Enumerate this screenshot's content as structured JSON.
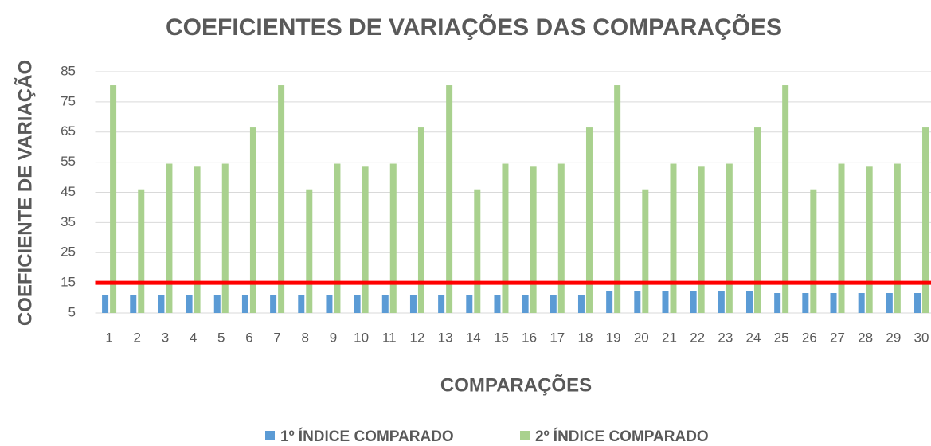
{
  "chart_data": {
    "type": "bar",
    "title": "COEFICIENTES DE VARIAÇÕES DAS COMPARAÇÕES",
    "x_label": "COMPARAÇÕES",
    "y_label": "COEFICIENTE DE VARIAÇÃO",
    "categories": [
      "1",
      "2",
      "3",
      "4",
      "5",
      "6",
      "7",
      "8",
      "9",
      "10",
      "11",
      "12",
      "13",
      "14",
      "15",
      "16",
      "17",
      "18",
      "19",
      "20",
      "21",
      "22",
      "23",
      "24",
      "25",
      "26",
      "27",
      "28",
      "29",
      "30"
    ],
    "series": [
      {
        "name": "1º ÍNDICE COMPARADO",
        "color": "#5b9bd5",
        "values": [
          11,
          11,
          11,
          11,
          11,
          11,
          11,
          11,
          11,
          11,
          11,
          11,
          11,
          11,
          11,
          11,
          11,
          11,
          12.2,
          12.2,
          12.2,
          12.2,
          12.2,
          12.2,
          11.6,
          11.6,
          11.6,
          11.6,
          11.6,
          11.6
        ]
      },
      {
        "name": "2º ÍNDICE COMPARADO",
        "color": "#a9d18e",
        "values": [
          80.5,
          46,
          54.5,
          53.5,
          54.5,
          66.5,
          80.5,
          46,
          54.5,
          53.5,
          54.5,
          66.5,
          80.5,
          46,
          54.5,
          53.5,
          54.5,
          66.5,
          80.5,
          46,
          54.5,
          53.5,
          54.5,
          66.5,
          80.5,
          46,
          54.5,
          53.5,
          54.5,
          66.5
        ]
      }
    ],
    "reference_line": {
      "value": 15,
      "color": "#ff0000"
    },
    "ylim": [
      5,
      85
    ],
    "yticks": [
      5,
      15,
      25,
      35,
      45,
      55,
      65,
      75,
      85
    ],
    "grid": true,
    "legend": "bottom"
  }
}
